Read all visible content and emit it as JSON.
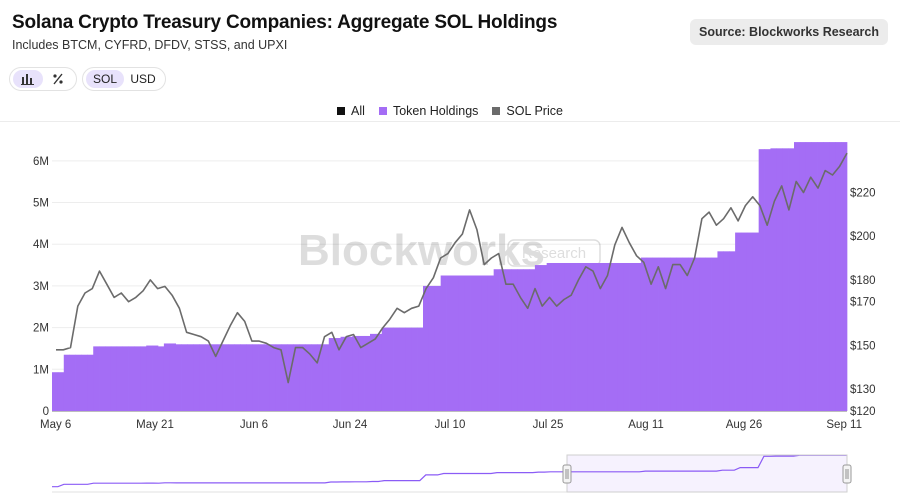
{
  "header": {
    "title": "Solana Crypto Treasury Companies: Aggregate SOL Holdings",
    "subtitle": "Includes BTCM, CYFRD, DFDV, STSS, and UPXI",
    "source": "Source: Blockworks Research"
  },
  "toolbar": {
    "chart_type_buttons": [
      {
        "icon": "bar-chart-icon",
        "active": true
      },
      {
        "icon": "percent-icon",
        "active": false
      }
    ],
    "unit_buttons": [
      {
        "label": "SOL",
        "active": true
      },
      {
        "label": "USD",
        "active": false
      }
    ]
  },
  "watermark": {
    "text": "Blockworks",
    "badge": "Research"
  },
  "colors": {
    "bars": "#a46df5",
    "price_line": "#6b6b6b",
    "all": "#111111",
    "accent": "#8b5cf6"
  },
  "chart_data": {
    "type": "bar",
    "grid": true,
    "legend": {
      "placement": "top-center",
      "entries": [
        {
          "name": "All",
          "color": "#111111"
        },
        {
          "name": "Token Holdings",
          "color": "#a46df5"
        },
        {
          "name": "SOL Price",
          "color": "#6b6b6b"
        }
      ]
    },
    "x_tick_labels": [
      "May 6",
      "May 21",
      "Jun 6",
      "Jun 24",
      "Jul 10",
      "Jul 25",
      "Aug 11",
      "Aug 26",
      "Sep 11"
    ],
    "y_left": {
      "ticks": [
        0,
        1,
        2,
        3,
        4,
        5,
        6
      ],
      "tick_labels": [
        "0",
        "1M",
        "2M",
        "3M",
        "4M",
        "5M",
        "6M"
      ],
      "range": [
        0,
        6.5
      ],
      "unit": "M"
    },
    "y_right": {
      "ticks": [
        120,
        130,
        140,
        150,
        160,
        170,
        180,
        190,
        200,
        210,
        220,
        230
      ],
      "tick_labels": [
        "$120",
        "$130",
        "$150",
        "$170",
        "$180",
        "$200",
        "$220"
      ],
      "labeled_ticks": [
        120,
        130,
        150,
        170,
        180,
        200,
        220
      ],
      "range": [
        120,
        244
      ]
    },
    "series": [
      {
        "name": "Token Holdings",
        "kind": "bar",
        "axis": "left",
        "values": [
          0.93,
          0.93,
          1.35,
          1.35,
          1.35,
          1.35,
          1.35,
          1.55,
          1.55,
          1.55,
          1.55,
          1.55,
          1.55,
          1.55,
          1.55,
          1.55,
          1.57,
          1.57,
          1.55,
          1.62,
          1.62,
          1.6,
          1.6,
          1.6,
          1.6,
          1.6,
          1.6,
          1.6,
          1.6,
          1.6,
          1.6,
          1.6,
          1.6,
          1.6,
          1.6,
          1.6,
          1.6,
          1.6,
          1.6,
          1.6,
          1.6,
          1.6,
          1.6,
          1.6,
          1.6,
          1.6,
          1.6,
          1.75,
          1.75,
          1.78,
          1.78,
          1.8,
          1.8,
          1.8,
          1.85,
          1.85,
          2.0,
          2.0,
          2.0,
          2.0,
          2.0,
          2.0,
          2.0,
          3.0,
          3.0,
          3.0,
          3.25,
          3.25,
          3.25,
          3.25,
          3.25,
          3.25,
          3.25,
          3.25,
          3.25,
          3.4,
          3.4,
          3.4,
          3.4,
          3.4,
          3.4,
          3.4,
          3.5,
          3.5,
          3.55,
          3.55,
          3.55,
          3.55,
          3.55,
          3.55,
          3.55,
          3.55,
          3.55,
          3.55,
          3.55,
          3.55,
          3.55,
          3.55,
          3.55,
          3.55,
          3.68,
          3.68,
          3.68,
          3.68,
          3.68,
          3.68,
          3.68,
          3.68,
          3.68,
          3.68,
          3.68,
          3.68,
          3.68,
          3.83,
          3.83,
          3.83,
          4.28,
          4.28,
          4.28,
          4.28,
          6.28,
          6.28,
          6.3,
          6.3,
          6.3,
          6.3,
          6.45,
          6.45,
          6.45,
          6.45,
          6.45,
          6.45,
          6.45,
          6.45,
          6.45
        ]
      },
      {
        "name": "SOL Price",
        "kind": "line",
        "axis": "right",
        "values": [
          148,
          148,
          149,
          168,
          174,
          176,
          184,
          178,
          172,
          174,
          170,
          172,
          175,
          180,
          176,
          177,
          173,
          167,
          156,
          155,
          154,
          152,
          145,
          152,
          159,
          165,
          161,
          152,
          152,
          151,
          149,
          148,
          133,
          149,
          149,
          146,
          142,
          154,
          156,
          148,
          154,
          155,
          149,
          151,
          153,
          158,
          162,
          167,
          165,
          167,
          168,
          176,
          181,
          190,
          192,
          197,
          201,
          212,
          203,
          187,
          190,
          192,
          178,
          178,
          172,
          167,
          176,
          168,
          172,
          168,
          171,
          173,
          180,
          186,
          184,
          176,
          182,
          196,
          204,
          197,
          191,
          188,
          178,
          186,
          176,
          187,
          187,
          182,
          190,
          208,
          211,
          205,
          208,
          213,
          207,
          214,
          218,
          214,
          205,
          216,
          223,
          212,
          225,
          220,
          227,
          222,
          230,
          228,
          232,
          238
        ]
      }
    ]
  }
}
